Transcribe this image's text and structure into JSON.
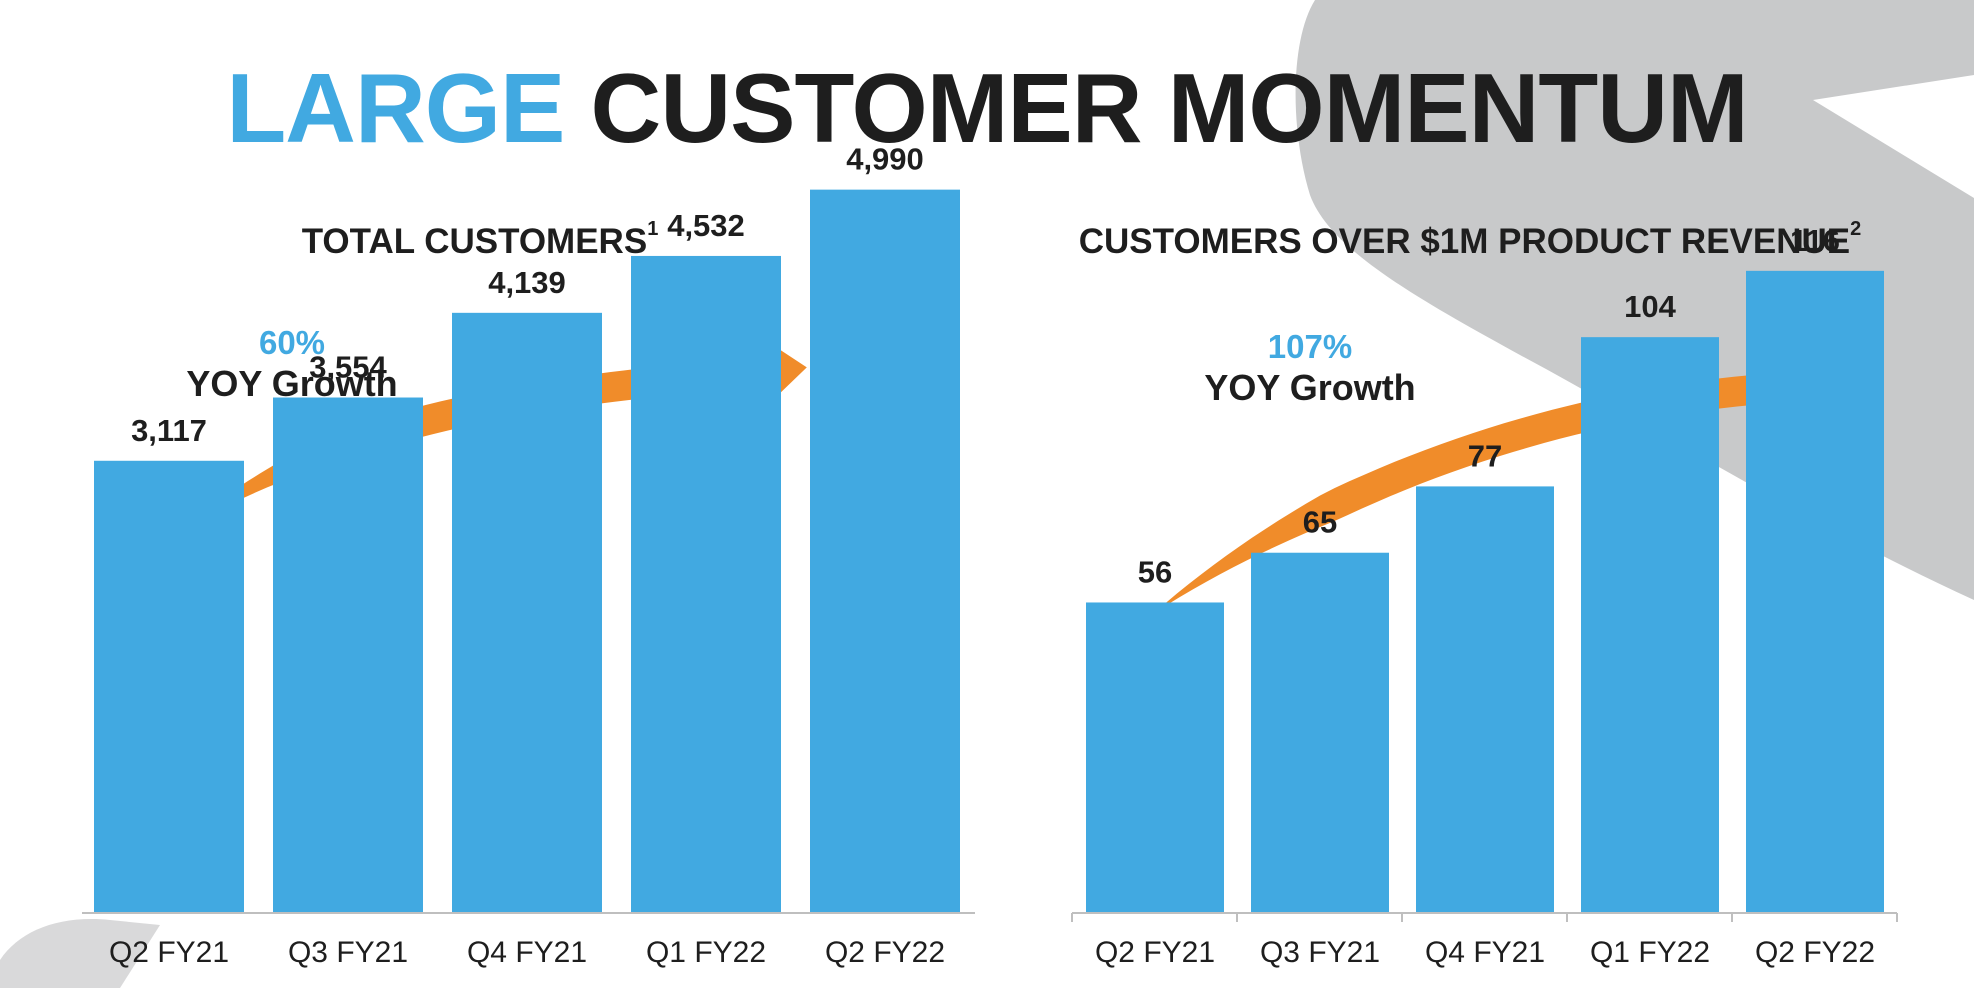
{
  "title": {
    "accent": "LARGE",
    "rest": "CUSTOMER MOMENTUM"
  },
  "colors": {
    "bar": "#41a9e1",
    "arrow": "#f08c2a",
    "accent": "#41a9e1",
    "text": "#1e1e1e",
    "bg_shape": "#c8c9ca"
  },
  "chart_data": [
    {
      "type": "bar",
      "title": "TOTAL CUSTOMERS",
      "title_footnote": "1",
      "growth": {
        "percent": "60%",
        "label": "YOY Growth"
      },
      "categories": [
        "Q2 FY21",
        "Q3 FY21",
        "Q4 FY21",
        "Q1 FY22",
        "Q2 FY22"
      ],
      "values": [
        3117,
        3554,
        4139,
        4532,
        4990
      ],
      "value_labels": [
        "3,117",
        "3,554",
        "4,139",
        "4,532",
        "4,990"
      ],
      "ylim": [
        0,
        6300
      ],
      "xlabel": "",
      "ylabel": ""
    },
    {
      "type": "bar",
      "title": "CUSTOMERS OVER $1M PRODUCT REVENUE",
      "title_footnote": "2",
      "growth": {
        "percent": "107%",
        "label": "YOY Growth"
      },
      "categories": [
        "Q2 FY21",
        "Q3 FY21",
        "Q4 FY21",
        "Q1 FY22",
        "Q2 FY22"
      ],
      "values": [
        56,
        65,
        77,
        104,
        116
      ],
      "value_labels": [
        "56",
        "65",
        "77",
        "104",
        "116"
      ],
      "ylim": [
        0,
        165
      ],
      "xlabel": "",
      "ylabel": ""
    }
  ]
}
